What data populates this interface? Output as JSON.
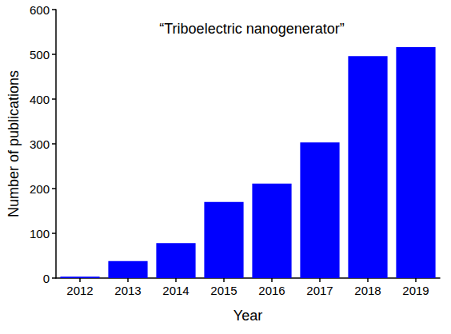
{
  "chart_data": {
    "type": "bar",
    "title": "“Triboelectric nanogenerator”",
    "x_label": "Year",
    "y_label": "Number of publications",
    "categories": [
      "2012",
      "2013",
      "2014",
      "2015",
      "2016",
      "2017",
      "2018",
      "2019"
    ],
    "values": [
      3,
      38,
      78,
      170,
      211,
      303,
      496,
      516
    ],
    "color": "#0000ff",
    "ylim": [
      0,
      600
    ],
    "yticks": [
      0,
      100,
      200,
      300,
      400,
      500,
      600
    ],
    "grid": false
  }
}
